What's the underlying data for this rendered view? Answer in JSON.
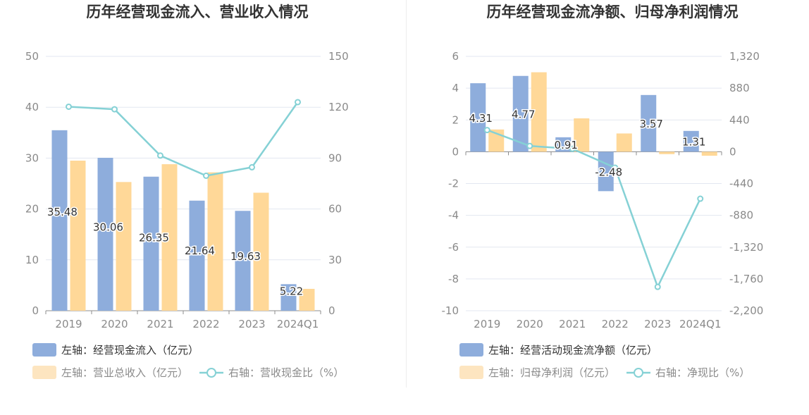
{
  "colors": {
    "bar_primary": "#8eaddc",
    "bar_secondary": "#ffd898",
    "bar_secondary_legend": "#fde5c0",
    "line": "#85d1d5",
    "gridline": "#e3e7f0",
    "text": "#333333",
    "muted": "#8a8a8a"
  },
  "chart_data": [
    {
      "type": "bar",
      "title": "历年经营现金流入、营业收入情况",
      "categories": [
        "2019",
        "2020",
        "2021",
        "2022",
        "2023",
        "2024Q1"
      ],
      "left_axis": {
        "ylim": [
          0,
          50
        ],
        "ticks": [
          "0",
          "10",
          "20",
          "30",
          "40",
          "50"
        ]
      },
      "right_axis": {
        "ylim": [
          0,
          150
        ],
        "ticks": [
          "0",
          "30",
          "60",
          "90",
          "120",
          "150"
        ]
      },
      "series": [
        {
          "name": "左轴：经营现金流入（亿元）",
          "type": "bar",
          "axis": "left",
          "values": [
            35.48,
            30.06,
            26.35,
            21.64,
            19.63,
            5.22
          ],
          "labels": [
            "35.48",
            "30.06",
            "26.35",
            "21.64",
            "19.63",
            "5.22"
          ]
        },
        {
          "name": "左轴：营业总收入（亿元）",
          "type": "bar",
          "axis": "left",
          "values": [
            29.5,
            25.3,
            28.8,
            27.2,
            23.2,
            4.3
          ]
        },
        {
          "name": "右轴：营收现金比（%）",
          "type": "line",
          "axis": "right",
          "values": [
            120.3,
            118.8,
            91.5,
            79.6,
            84.6,
            123
          ]
        }
      ]
    },
    {
      "type": "bar",
      "title": "历年经营现金流净额、归母净利润情况",
      "categories": [
        "2019",
        "2020",
        "2021",
        "2022",
        "2023",
        "2024Q1"
      ],
      "left_axis": {
        "ylim": [
          -10,
          6
        ],
        "ticks": [
          "-10",
          "-8",
          "-6",
          "-4",
          "-2",
          "0",
          "2",
          "4",
          "6"
        ]
      },
      "right_axis": {
        "ylim": [
          -2200,
          1320
        ],
        "ticks": [
          "-2,200",
          "-1,760",
          "-1,320",
          "-880",
          "-440",
          "0",
          "440",
          "880",
          "1,320"
        ]
      },
      "series": [
        {
          "name": "左轴：经营活动现金流净额（亿元）",
          "type": "bar",
          "axis": "left",
          "values": [
            4.31,
            4.77,
            0.91,
            -2.48,
            3.57,
            1.31
          ],
          "labels": [
            "4.31",
            "4.77",
            "0.91",
            "-2.48",
            "3.57",
            "1.31"
          ]
        },
        {
          "name": "左轴：归母净利润（亿元）",
          "type": "bar",
          "axis": "left",
          "values": [
            1.4,
            5.0,
            2.1,
            1.15,
            -0.15,
            -0.25
          ]
        },
        {
          "name": "右轴：净现比（%）",
          "type": "line",
          "axis": "right",
          "values": [
            300,
            80,
            40,
            -220,
            -1870,
            -650
          ]
        }
      ]
    }
  ]
}
